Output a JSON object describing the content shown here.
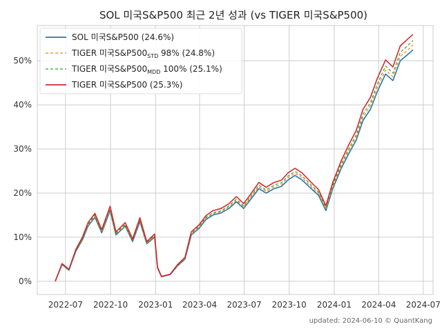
{
  "chart_data": {
    "type": "line",
    "title": "SOL 미국S&P500 최근 2년 성과 (vs TIGER 미국S&P500)",
    "xlabel": "",
    "ylabel": "",
    "x_ticks": [
      "2022-07",
      "2022-10",
      "2023-01",
      "2023-04",
      "2023-07",
      "2023-10",
      "2024-01",
      "2024-04",
      "2024-07"
    ],
    "y_ticks": [
      "0%",
      "10%",
      "20%",
      "30%",
      "40%",
      "50%"
    ],
    "ylim": [
      -3,
      58
    ],
    "x_range": [
      "2022-06-10",
      "2024-06-10"
    ],
    "grid": true,
    "legend_position": "top-left",
    "x": [
      "2022-06-10",
      "2022-06-24",
      "2022-07-08",
      "2022-07-22",
      "2022-08-05",
      "2022-08-16",
      "2022-08-30",
      "2022-09-13",
      "2022-09-30",
      "2022-10-12",
      "2022-10-31",
      "2022-11-15",
      "2022-11-30",
      "2022-12-14",
      "2022-12-30",
      "2023-01-05",
      "2023-01-13",
      "2023-01-31",
      "2023-02-15",
      "2023-03-02",
      "2023-03-15",
      "2023-03-31",
      "2023-04-14",
      "2023-04-28",
      "2023-05-15",
      "2023-05-31",
      "2023-06-15",
      "2023-06-30",
      "2023-07-14",
      "2023-07-31",
      "2023-08-15",
      "2023-08-31",
      "2023-09-15",
      "2023-09-29",
      "2023-10-13",
      "2023-10-27",
      "2023-11-15",
      "2023-11-30",
      "2023-12-15",
      "2023-12-29",
      "2024-01-15",
      "2024-01-31",
      "2024-02-15",
      "2024-02-29",
      "2024-03-15",
      "2024-03-29",
      "2024-04-15",
      "2024-04-30",
      "2024-05-15",
      "2024-05-31",
      "2024-06-10"
    ],
    "series": [
      {
        "name": "SOL 미국S&P500 (24.6%)",
        "color": "#1f77b4",
        "dash": "solid",
        "values": [
          0.0,
          3.8,
          2.5,
          6.8,
          9.5,
          12.5,
          14.5,
          11.0,
          16.0,
          10.5,
          12.5,
          9.0,
          13.5,
          8.5,
          10.0,
          3.0,
          1.0,
          1.5,
          3.5,
          5.0,
          10.5,
          12.0,
          14.0,
          15.0,
          15.5,
          16.5,
          18.0,
          16.5,
          18.5,
          21.0,
          20.0,
          21.0,
          21.5,
          23.0,
          24.0,
          23.0,
          21.0,
          19.5,
          16.0,
          21.0,
          25.5,
          29.0,
          32.0,
          36.5,
          39.0,
          43.0,
          47.0,
          45.5,
          50.0,
          51.5,
          52.5
        ]
      },
      {
        "name": "TIGER 미국S&P500STD 98% (24.8%)",
        "color": "#ff7f0e",
        "dash": "dashed",
        "values": [
          0.0,
          3.9,
          2.6,
          6.9,
          9.7,
          12.7,
          14.8,
          11.2,
          16.3,
          10.7,
          12.7,
          9.2,
          13.8,
          8.7,
          10.2,
          3.1,
          1.0,
          1.6,
          3.6,
          5.1,
          10.7,
          12.2,
          14.3,
          15.3,
          15.8,
          16.8,
          18.3,
          16.8,
          18.9,
          21.4,
          20.4,
          21.4,
          21.9,
          23.5,
          24.5,
          23.5,
          21.4,
          19.9,
          16.3,
          21.4,
          26.0,
          29.6,
          32.6,
          37.2,
          39.8,
          43.9,
          47.9,
          46.4,
          51.0,
          52.5,
          53.6
        ]
      },
      {
        "name": "TIGER 미국S&P500MDD 100% (25.1%)",
        "color": "#2ca02c",
        "dash": "dashed",
        "values": [
          0.0,
          3.9,
          2.6,
          7.0,
          9.8,
          12.9,
          15.0,
          11.4,
          16.5,
          10.9,
          12.9,
          9.3,
          14.0,
          8.8,
          10.4,
          3.1,
          1.0,
          1.6,
          3.7,
          5.2,
          10.9,
          12.4,
          14.5,
          15.5,
          16.0,
          17.1,
          18.6,
          17.1,
          19.2,
          21.8,
          20.7,
          21.8,
          22.3,
          23.9,
          24.9,
          23.9,
          21.8,
          20.2,
          16.6,
          21.8,
          26.5,
          30.1,
          33.2,
          37.9,
          40.5,
          44.7,
          48.8,
          47.2,
          51.9,
          53.5,
          54.6
        ]
      },
      {
        "name": "TIGER 미국S&P500 (25.3%)",
        "color": "#d62728",
        "dash": "solid",
        "values": [
          0.0,
          4.0,
          2.7,
          7.2,
          10.1,
          13.3,
          15.4,
          11.7,
          17.0,
          11.2,
          13.3,
          9.6,
          14.4,
          9.0,
          10.7,
          3.2,
          1.1,
          1.6,
          3.8,
          5.4,
          11.2,
          12.8,
          14.9,
          16.0,
          16.5,
          17.6,
          19.2,
          17.6,
          19.7,
          22.4,
          21.3,
          22.4,
          22.9,
          24.6,
          25.6,
          24.6,
          22.4,
          20.8,
          17.1,
          22.4,
          27.2,
          31.0,
          34.2,
          39.0,
          41.7,
          46.0,
          50.2,
          48.6,
          53.4,
          55.0,
          56.0
        ]
      }
    ],
    "legend": [
      {
        "main": "SOL 미국S&P500 (24.6%)",
        "sub": "",
        "rest": ""
      },
      {
        "main": "TIGER 미국S&P500",
        "sub": "STD",
        "rest": " 98% (24.8%)"
      },
      {
        "main": "TIGER 미국S&P500",
        "sub": "MDD",
        "rest": " 100% (25.1%)"
      },
      {
        "main": "TIGER 미국S&P500 (25.3%)",
        "sub": "",
        "rest": ""
      }
    ],
    "footer": "updated: 2024-06-10 © QuantKang"
  }
}
